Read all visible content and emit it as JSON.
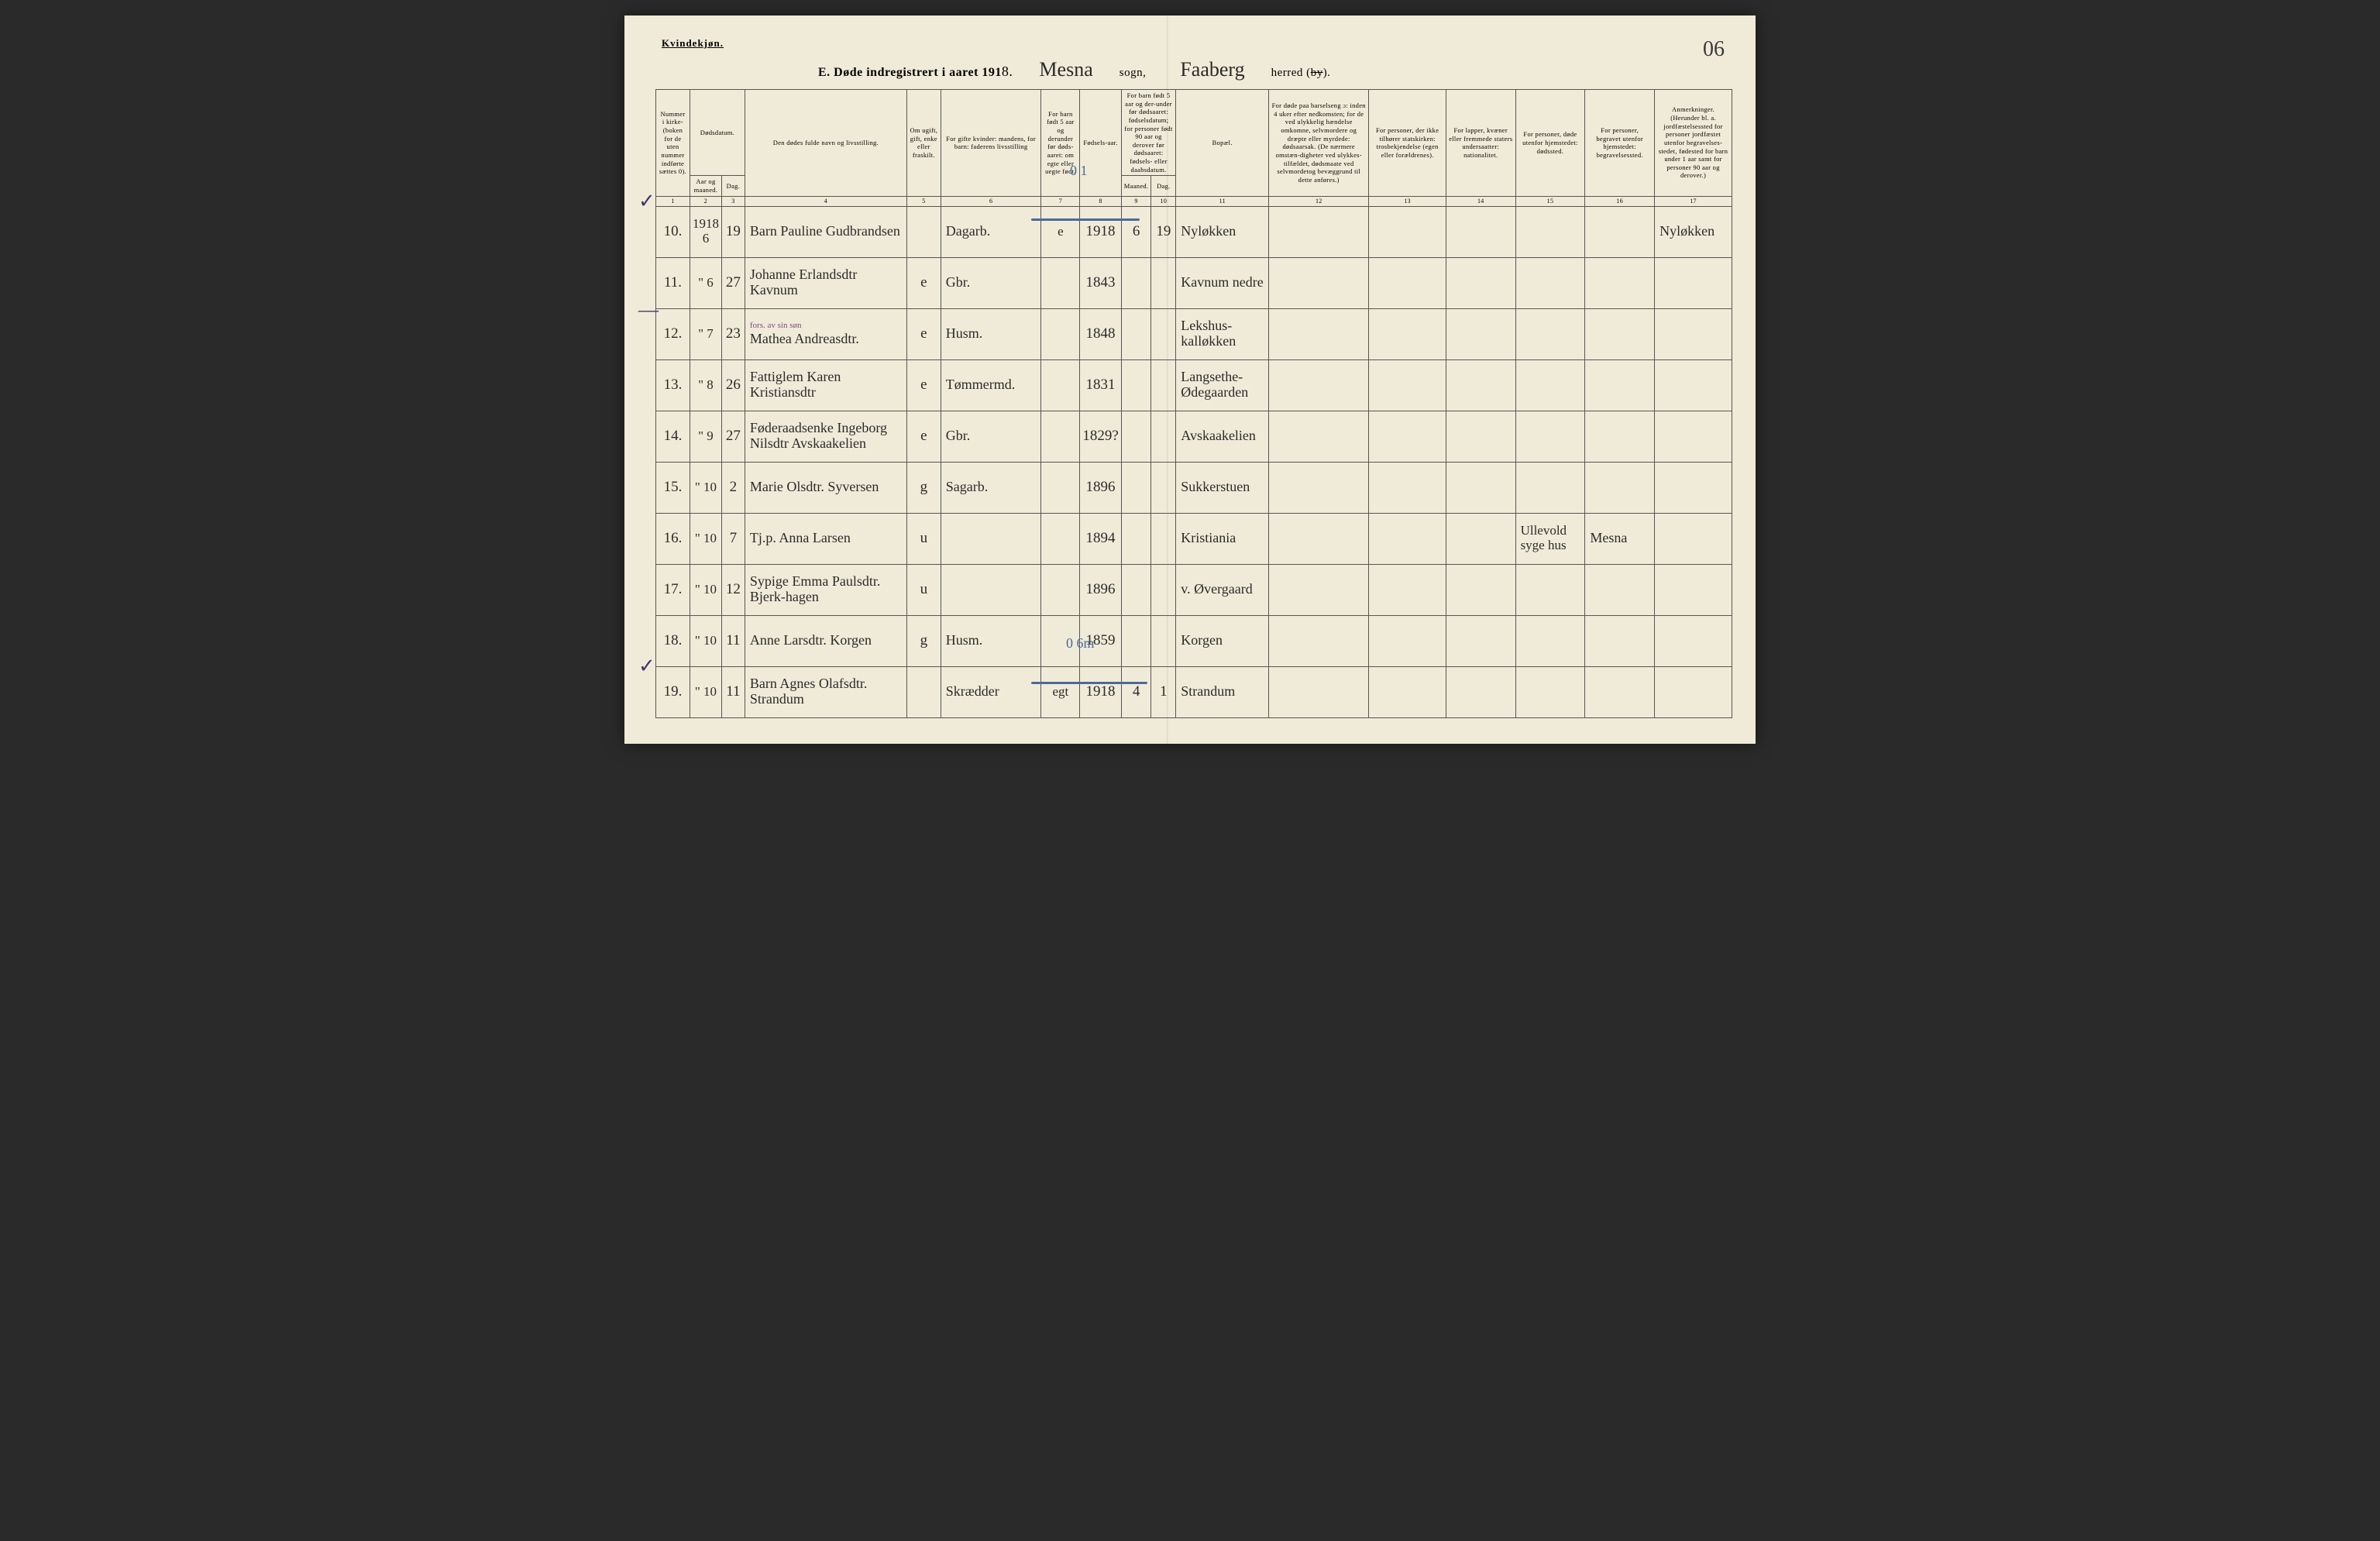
{
  "gender_label": "Kvindekjøn.",
  "page_number": "06",
  "title": {
    "prefix": "E.  Døde indregistrert i aaret 191",
    "year_suffix": "8.",
    "parish": "Mesna",
    "parish_label": "sogn,",
    "district": "Faaberg",
    "district_label_a": "herred (",
    "district_label_strike": "by",
    "district_label_b": ")."
  },
  "headers": {
    "h1": "Nummer i kirke-(boken for de uten nummer indførte sættes 0).",
    "h2": "Dødsdatum.",
    "h2a": "Aar og maaned.",
    "h2b": "Dag.",
    "h4": "Den dødes fulde navn og livsstilling.",
    "h5": "Om ugift, gift, enke eller fraskilt.",
    "h6": "For gifte kvinder:\nmandens,\nfor barn:\nfaderens livsstilling",
    "h7": "For barn født 5 aar og derunder før døds-aaret: om egte eller uegte født.",
    "h8": "Fødsels-aar.",
    "h9": "For barn født 5 aar og der-under før dødsaaret: fødselsdatum; for personer født 90 aar og derover før dødsaaret: fødsels- eller daabsdatum.",
    "h9a": "Maaned.",
    "h9b": "Dag.",
    "h11": "Bopæl.",
    "h12": "For døde paa barselseng ɔ: inden 4 uker efter nedkomsten; for de ved ulykkelig hændelse omkomne, selvmordere og dræpte eller myrdede: dødsaarsak. (De nærmere omstæn-digheter ved ulykkes-tilfældet, dødsmaate ved selvmordetog bevæggrund til dette anføres.)",
    "h13": "For personer, der ikke tilhører statskirken: trosbekjendelse (egen eller forældrenes).",
    "h14": "For lapper, kvæner eller fremmede staters undersaatter: nationalitet.",
    "h15": "For personer, døde utenfor hjemstedet: dødssted.",
    "h16": "For personer, begravet utenfor hjemstedet: begravelsessted.",
    "h17": "Anmerkninger. (Herunder bl. a. jordfæstelsessted for personer jordfæstet utenfor begravelses-stedet, fødested for barn under 1 aar samt for personer 90 aar og derover.)"
  },
  "colnums": [
    "1",
    "2",
    "3",
    "4",
    "5",
    "6",
    "7",
    "8",
    "9",
    "10",
    "11",
    "12",
    "13",
    "14",
    "15",
    "16",
    "17"
  ],
  "rows": [
    {
      "n": "10.",
      "ym_top": "1918",
      "ym": "6",
      "d": "19",
      "name": "Barn Pauline Gudbrandsen",
      "ms": "",
      "occ": "Dagarb.",
      "leg": "e",
      "yr": "1918",
      "bm": "6",
      "bd": "19",
      "place": "Nyløkken",
      "c12": "",
      "c13": "",
      "c14": "",
      "c15": "",
      "c16": "",
      "c17": "Nyløkken"
    },
    {
      "n": "11.",
      "ym": "\" 6",
      "d": "27",
      "name": "Johanne Erlandsdtr Kavnum",
      "ms": "e",
      "occ": "Gbr.",
      "leg": "",
      "yr": "1843",
      "bm": "",
      "bd": "",
      "place": "Kavnum nedre",
      "c12": "",
      "c13": "",
      "c14": "",
      "c15": "",
      "c16": "",
      "c17": ""
    },
    {
      "n": "12.",
      "ym": "\" 7",
      "d": "23",
      "purple": "fors. av sin søn",
      "name": "Mathea Andreasdtr.",
      "ms": "e",
      "occ": "Husm.",
      "leg": "",
      "yr": "1848",
      "bm": "",
      "bd": "",
      "place": "Lekshus-kalløkken",
      "c12": "",
      "c13": "",
      "c14": "",
      "c15": "",
      "c16": "",
      "c17": ""
    },
    {
      "n": "13.",
      "ym": "\" 8",
      "d": "26",
      "name": "Fattiglem Karen Kristiansdtr",
      "ms": "e",
      "occ": "Tømmermd.",
      "leg": "",
      "yr": "1831",
      "bm": "",
      "bd": "",
      "place": "Langsethe-Ødegaarden",
      "c12": "",
      "c13": "",
      "c14": "",
      "c15": "",
      "c16": "",
      "c17": ""
    },
    {
      "n": "14.",
      "ym": "\" 9",
      "d": "27",
      "name": "Føderaadsenke Ingeborg Nilsdtr Avskaakelien",
      "ms": "e",
      "occ": "Gbr.",
      "leg": "",
      "yr": "1829?",
      "bm": "",
      "bd": "",
      "place": "Avskaakelien",
      "c12": "",
      "c13": "",
      "c14": "",
      "c15": "",
      "c16": "",
      "c17": ""
    },
    {
      "n": "15.",
      "ym": "\" 10",
      "d": "2",
      "name": "Marie Olsdtr. Syversen",
      "ms": "g",
      "occ": "Sagarb.",
      "leg": "",
      "yr": "1896",
      "bm": "",
      "bd": "",
      "place": "Sukkerstuen",
      "c12": "",
      "c13": "",
      "c14": "",
      "c15": "",
      "c16": "",
      "c17": ""
    },
    {
      "n": "16.",
      "ym": "\" 10",
      "d": "7",
      "name": "Tj.p. Anna Larsen",
      "ms": "u",
      "occ": "",
      "leg": "",
      "yr": "1894",
      "bm": "",
      "bd": "",
      "place": "Kristiania",
      "c12": "",
      "c13": "",
      "c14": "",
      "c15": "Ullevold syge hus",
      "c16": "Mesna",
      "c17": ""
    },
    {
      "n": "17.",
      "ym": "\" 10",
      "d": "12",
      "name": "Sypige Emma Paulsdtr. Bjerk-hagen",
      "ms": "u",
      "occ": "",
      "leg": "",
      "yr": "1896",
      "bm": "",
      "bd": "",
      "place": "v. Øvergaard",
      "c12": "",
      "c13": "",
      "c14": "",
      "c15": "",
      "c16": "",
      "c17": ""
    },
    {
      "n": "18.",
      "ym": "\" 10",
      "d": "11",
      "name": "Anne Larsdtr. Korgen",
      "ms": "g",
      "occ": "Husm.",
      "leg": "",
      "yr": "1859",
      "bm": "",
      "bd": "",
      "place": "Korgen",
      "c12": "",
      "c13": "",
      "c14": "",
      "c15": "",
      "c16": "",
      "c17": ""
    },
    {
      "n": "19.",
      "ym": "\" 10",
      "d": "11",
      "name": "Barn Agnes Olafsdtr. Strandum",
      "ms": "",
      "occ": "Skrædder",
      "leg": "egt",
      "yr": "1918",
      "bm": "4",
      "bd": "1",
      "place": "Strandum",
      "c12": "",
      "c13": "",
      "c14": "",
      "c15": "",
      "c16": "",
      "c17": ""
    }
  ],
  "annotations": {
    "check_r10": "✓",
    "check_r12": "—",
    "check_r19": "✓",
    "blue_top": "0 1",
    "blue_bottom": "0 6m"
  }
}
